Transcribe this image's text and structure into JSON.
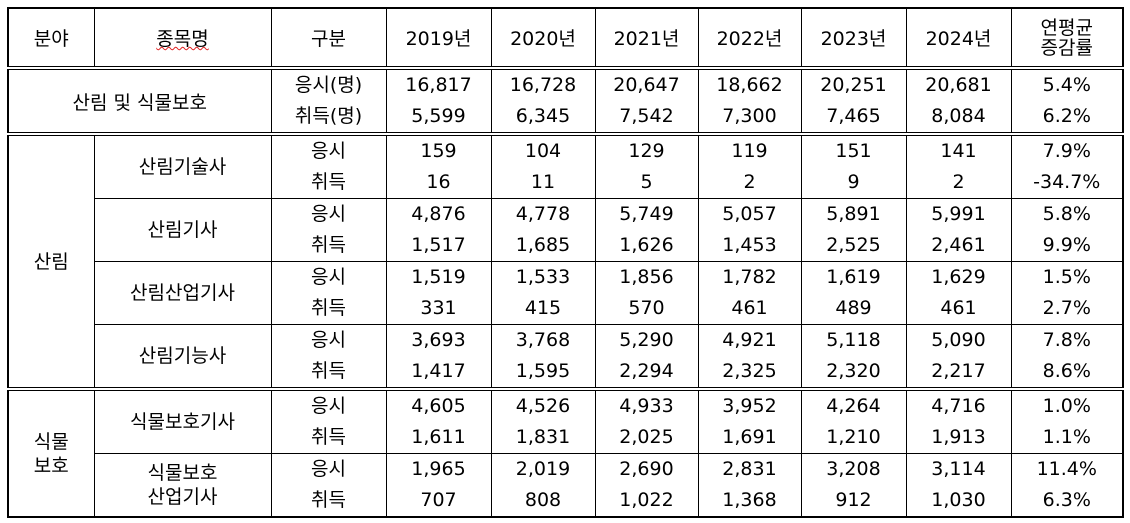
{
  "header": {
    "field": "분야",
    "item": "종목명",
    "kind": "구분",
    "years": [
      "2019년",
      "2020년",
      "2021년",
      "2022년",
      "2023년",
      "2024년"
    ],
    "rate": [
      "연평균",
      "증감률"
    ]
  },
  "total": {
    "label": "산림 및 식물보호",
    "rows": [
      {
        "kind": "응시(명)",
        "values": [
          "16,817",
          "16,728",
          "20,647",
          "18,662",
          "20,251",
          "20,681"
        ],
        "rate": "5.4%"
      },
      {
        "kind": "취득(명)",
        "values": [
          "5,599",
          "6,345",
          "7,542",
          "7,300",
          "7,465",
          "8,084"
        ],
        "rate": "6.2%"
      }
    ]
  },
  "sections": [
    {
      "field": [
        "산림"
      ],
      "items": [
        {
          "name": [
            "산림기술사"
          ],
          "rows": [
            {
              "kind": "응시",
              "values": [
                "159",
                "104",
                "129",
                "119",
                "151",
                "141"
              ],
              "rate": "7.9%"
            },
            {
              "kind": "취득",
              "values": [
                "16",
                "11",
                "5",
                "2",
                "9",
                "2"
              ],
              "rate": "-34.7%"
            }
          ]
        },
        {
          "name": [
            "산림기사"
          ],
          "rows": [
            {
              "kind": "응시",
              "values": [
                "4,876",
                "4,778",
                "5,749",
                "5,057",
                "5,891",
                "5,991"
              ],
              "rate": "5.8%"
            },
            {
              "kind": "취득",
              "values": [
                "1,517",
                "1,685",
                "1,626",
                "1,453",
                "2,525",
                "2,461"
              ],
              "rate": "9.9%"
            }
          ]
        },
        {
          "name": [
            "산림산업기사"
          ],
          "rows": [
            {
              "kind": "응시",
              "values": [
                "1,519",
                "1,533",
                "1,856",
                "1,782",
                "1,619",
                "1,629"
              ],
              "rate": "1.5%"
            },
            {
              "kind": "취득",
              "values": [
                "331",
                "415",
                "570",
                "461",
                "489",
                "461"
              ],
              "rate": "2.7%"
            }
          ]
        },
        {
          "name": [
            "산림기능사"
          ],
          "rows": [
            {
              "kind": "응시",
              "values": [
                "3,693",
                "3,768",
                "5,290",
                "4,921",
                "5,118",
                "5,090"
              ],
              "rate": "7.8%"
            },
            {
              "kind": "취득",
              "values": [
                "1,417",
                "1,595",
                "2,294",
                "2,325",
                "2,320",
                "2,217"
              ],
              "rate": "8.6%"
            }
          ]
        }
      ]
    },
    {
      "field": [
        "식물",
        "보호"
      ],
      "items": [
        {
          "name": [
            "식물보호기사"
          ],
          "rows": [
            {
              "kind": "응시",
              "values": [
                "4,605",
                "4,526",
                "4,933",
                "3,952",
                "4,264",
                "4,716"
              ],
              "rate": "1.0%"
            },
            {
              "kind": "취득",
              "values": [
                "1,611",
                "1,831",
                "2,025",
                "1,691",
                "1,210",
                "1,913"
              ],
              "rate": "1.1%"
            }
          ]
        },
        {
          "name": [
            "식물보호",
            "산업기사"
          ],
          "rows": [
            {
              "kind": "응시",
              "values": [
                "1,965",
                "2,019",
                "2,690",
                "2,831",
                "3,208",
                "3,114"
              ],
              "rate": "11.4%"
            },
            {
              "kind": "취득",
              "values": [
                "707",
                "808",
                "1,022",
                "1,368",
                "912",
                "1,030"
              ],
              "rate": "6.3%"
            }
          ]
        }
      ]
    }
  ]
}
